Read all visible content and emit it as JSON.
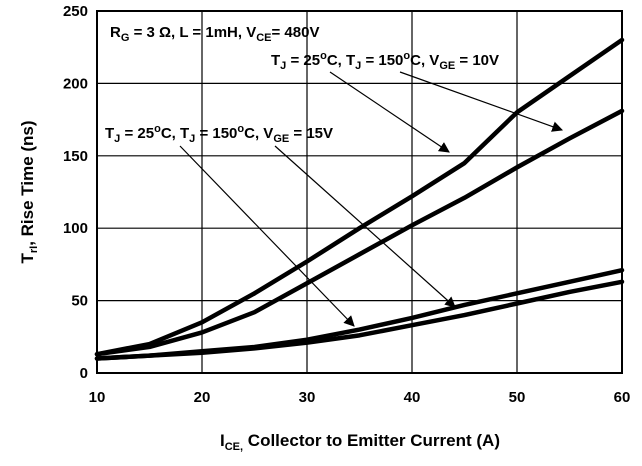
{
  "chart_data": {
    "type": "line",
    "title": "",
    "xlabel": {
      "main": "I",
      "sub": "CE,",
      "rest": " Collector to Emitter Current (A)"
    },
    "ylabel": {
      "main": "T",
      "sub": "rI",
      "rest": ", Rise Time (ns)"
    },
    "xlim": [
      10,
      60
    ],
    "ylim": [
      0,
      250
    ],
    "xticks": [
      10,
      20,
      30,
      40,
      50,
      60
    ],
    "yticks": [
      0,
      50,
      100,
      150,
      200,
      250
    ],
    "grid": true,
    "series": [
      {
        "x": [
          10,
          15,
          20,
          25,
          30,
          35,
          40,
          45,
          50,
          55,
          60
        ],
        "values": [
          13,
          20,
          35,
          55,
          77,
          100,
          122,
          145,
          180,
          205,
          230
        ]
      },
      {
        "x": [
          10,
          15,
          20,
          25,
          30,
          35,
          40,
          45,
          50,
          55,
          60
        ],
        "values": [
          13,
          18,
          28,
          42,
          62,
          82,
          102,
          121,
          142,
          162,
          181
        ]
      },
      {
        "x": [
          10,
          15,
          20,
          25,
          30,
          35,
          40,
          45,
          50,
          55,
          60
        ],
        "values": [
          10,
          12,
          15,
          18,
          23,
          30,
          38,
          47,
          55,
          63,
          71
        ]
      },
      {
        "x": [
          10,
          15,
          20,
          25,
          30,
          35,
          40,
          45,
          50,
          55,
          60
        ],
        "values": [
          10,
          12,
          14,
          17,
          21,
          26,
          33,
          40,
          48,
          56,
          63
        ]
      }
    ],
    "annotations": [
      {
        "id": "cond",
        "parts": [
          [
            "R",
            ""
          ],
          [
            "G",
            "sub"
          ],
          [
            " = 3 Ω, L = 1mH, V",
            ""
          ],
          [
            "CE",
            "sub"
          ],
          [
            "= 480V",
            ""
          ]
        ]
      },
      {
        "id": "vge10",
        "parts": [
          [
            "T",
            ""
          ],
          [
            "J",
            "sub"
          ],
          [
            " = 25",
            ""
          ],
          [
            "o",
            "sup"
          ],
          [
            "C, T",
            ""
          ],
          [
            "J",
            "sub"
          ],
          [
            " = 150",
            ""
          ],
          [
            "o",
            "sup"
          ],
          [
            "C, V",
            ""
          ],
          [
            "GE",
            "sub"
          ],
          [
            " = 10V",
            ""
          ]
        ]
      },
      {
        "id": "vge15",
        "parts": [
          [
            "T",
            ""
          ],
          [
            "J",
            "sub"
          ],
          [
            " = 25",
            ""
          ],
          [
            "o",
            "sup"
          ],
          [
            "C, T",
            ""
          ],
          [
            "J",
            "sub"
          ],
          [
            " = 150",
            ""
          ],
          [
            "o",
            "sup"
          ],
          [
            "C, V",
            ""
          ],
          [
            "GE",
            "sub"
          ],
          [
            " = 15V",
            ""
          ]
        ]
      }
    ]
  }
}
